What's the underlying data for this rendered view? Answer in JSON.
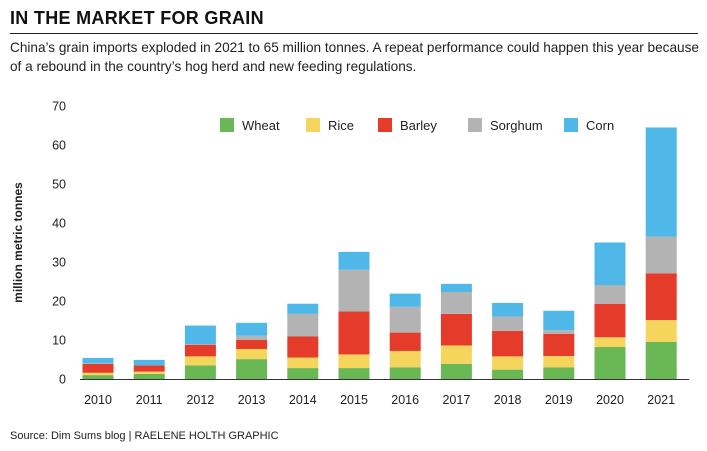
{
  "header": {
    "title": "IN THE MARKET FOR GRAIN",
    "subtitle": "China’s grain imports exploded in 2021 to 65 million tonnes. A repeat performance could happen this year because of a rebound in the country’s hog herd and new feeding regulations."
  },
  "footer": {
    "source": "Source: Dim Sums blog  |  RAELENE HOLTH GRAPHIC"
  },
  "chart_data": {
    "type": "bar",
    "stacked": true,
    "title": "IN THE MARKET FOR GRAIN",
    "ylabel": "million metric tonnes",
    "xlabel": "",
    "ylim": [
      0,
      70
    ],
    "yticks": [
      0,
      10,
      20,
      30,
      40,
      50,
      60,
      70
    ],
    "grid": false,
    "legend_position": "top-right",
    "categories": [
      "2010",
      "2011",
      "2012",
      "2013",
      "2014",
      "2015",
      "2016",
      "2017",
      "2018",
      "2019",
      "2020",
      "2021"
    ],
    "series": [
      {
        "name": "Wheat",
        "color": "#6ab755",
        "values": [
          1.0,
          1.3,
          3.5,
          5.1,
          2.8,
          2.8,
          3.0,
          3.9,
          2.4,
          3.0,
          8.2,
          9.5
        ]
      },
      {
        "name": "Rice",
        "color": "#f6d55c",
        "values": [
          0.6,
          0.6,
          2.3,
          2.6,
          2.7,
          3.5,
          4.2,
          4.7,
          3.4,
          2.9,
          2.5,
          5.6
        ]
      },
      {
        "name": "Barley",
        "color": "#e53b2b",
        "values": [
          2.3,
          1.6,
          3.0,
          2.3,
          5.4,
          11.0,
          4.7,
          8.1,
          6.5,
          5.7,
          8.6,
          12.0
        ]
      },
      {
        "name": "Sorghum",
        "color": "#b3b3b3",
        "values": [
          0.1,
          0.0,
          0.1,
          1.1,
          5.8,
          10.7,
          6.6,
          5.6,
          3.7,
          0.9,
          4.8,
          9.4
        ]
      },
      {
        "name": "Corn",
        "color": "#4fb8e8",
        "values": [
          1.4,
          1.4,
          4.8,
          3.3,
          2.6,
          4.6,
          3.4,
          2.1,
          3.5,
          5.0,
          10.9,
          28.0
        ]
      }
    ]
  }
}
